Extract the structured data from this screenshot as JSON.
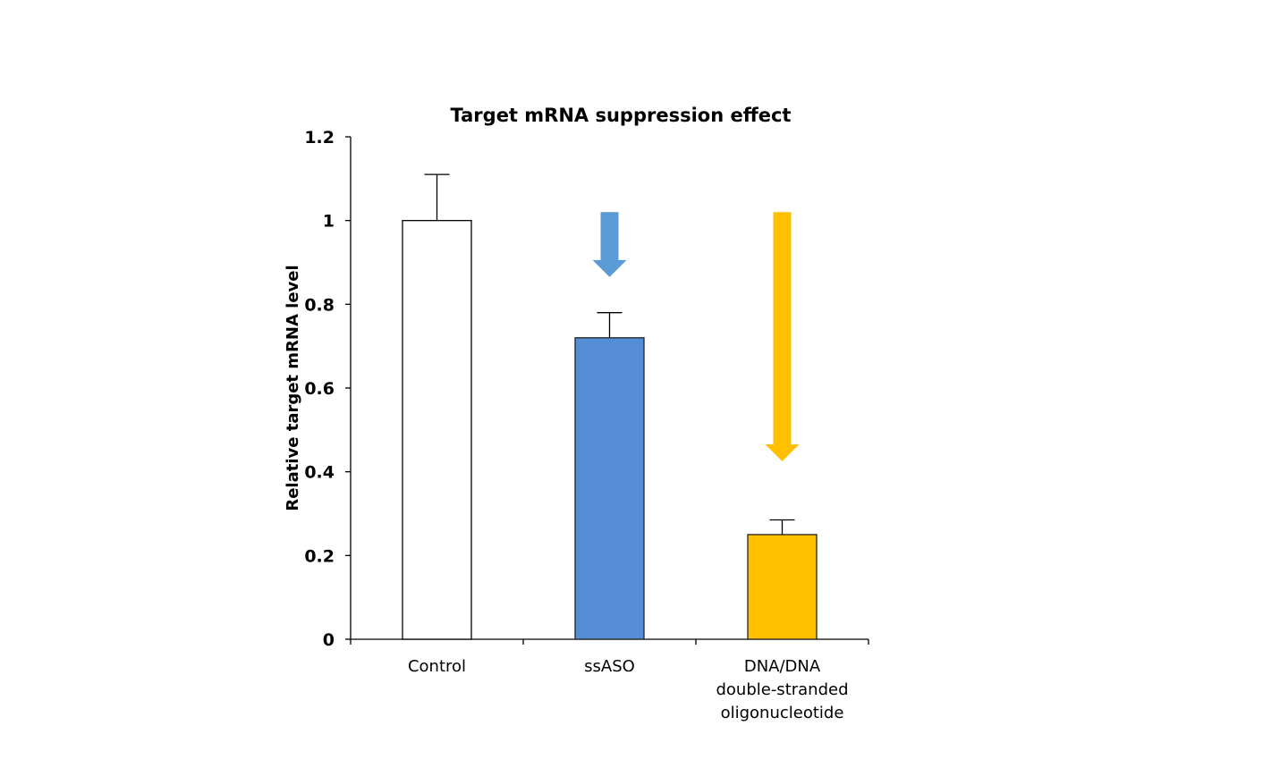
{
  "chart_data": {
    "type": "bar",
    "title": "Target mRNA suppression effect",
    "xlabel": "",
    "ylabel": "Relative target mRNA level",
    "ylim": [
      0,
      1.2
    ],
    "yticks": [
      "0",
      "0.2",
      "0.4",
      "0.6",
      "0.8",
      "1",
      "1.2"
    ],
    "grid": false,
    "categories": [
      [
        "Control"
      ],
      [
        "ssASO"
      ],
      [
        "DNA/DNA",
        "double-stranded",
        "oligonucleotide"
      ]
    ],
    "values": [
      1.0,
      0.72,
      0.25
    ],
    "error_upper": [
      0.11,
      0.06,
      0.035
    ],
    "bar_colors": [
      "#ffffff",
      "#558ed5",
      "#ffc000"
    ],
    "annotations": [
      {
        "type": "down-arrow",
        "category": "ssASO",
        "color": "#5b9bd5",
        "from": 1.02,
        "to": 0.865
      },
      {
        "type": "down-arrow",
        "category": "DNA/DNA double-stranded oligonucleotide",
        "color": "#ffc000",
        "from": 1.02,
        "to": 0.425
      }
    ]
  }
}
